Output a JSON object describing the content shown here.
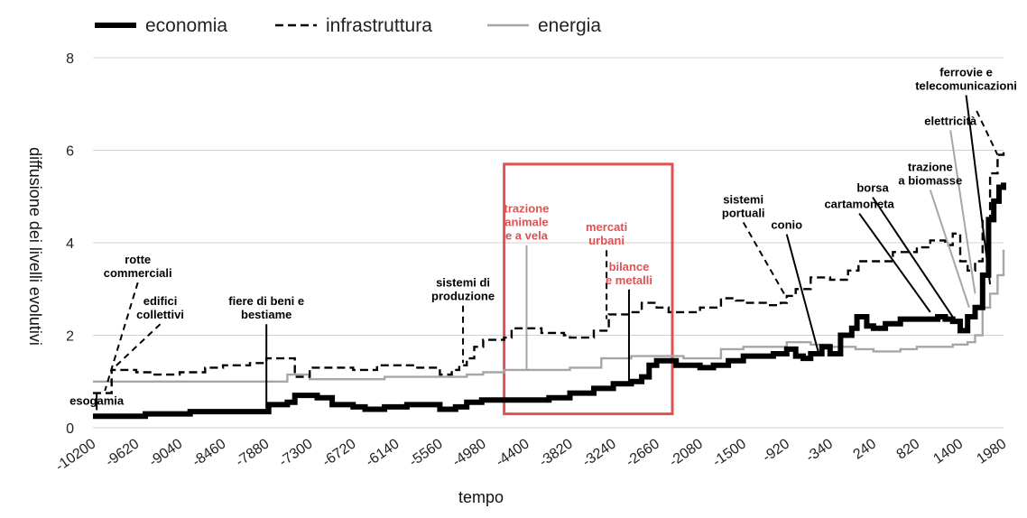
{
  "chart_data": {
    "type": "line",
    "xlabel": "tempo",
    "ylabel": "diffusione dei livelli evolutivi",
    "xlim": [
      -10200,
      1980
    ],
    "ylim": [
      0,
      8
    ],
    "y_ticks": [
      0,
      2,
      4,
      6,
      8
    ],
    "x_ticks": [
      -10200,
      -9620,
      -9040,
      -8460,
      -7880,
      -7300,
      -6720,
      -6140,
      -5560,
      -4980,
      -4400,
      -3820,
      -3240,
      -2660,
      -2080,
      -1500,
      -920,
      -340,
      240,
      820,
      1400,
      1980
    ],
    "grid": "horizontal",
    "legend_position": "top",
    "highlight_box": {
      "x_range": [
        -4700,
        -2450
      ],
      "y_range": [
        0.3,
        5.7
      ],
      "color": "#e05252"
    },
    "series": [
      {
        "name": "economia",
        "style": "solid",
        "color": "#000000",
        "points": [
          [
            -10200,
            0.25
          ],
          [
            -9500,
            0.3
          ],
          [
            -8900,
            0.35
          ],
          [
            -8500,
            0.35
          ],
          [
            -7880,
            0.35
          ],
          [
            -7850,
            0.5
          ],
          [
            -7600,
            0.55
          ],
          [
            -7500,
            0.7
          ],
          [
            -7200,
            0.65
          ],
          [
            -7000,
            0.5
          ],
          [
            -6720,
            0.45
          ],
          [
            -6560,
            0.4
          ],
          [
            -6300,
            0.45
          ],
          [
            -6000,
            0.5
          ],
          [
            -5700,
            0.5
          ],
          [
            -5560,
            0.4
          ],
          [
            -5350,
            0.45
          ],
          [
            -5200,
            0.55
          ],
          [
            -5000,
            0.6
          ],
          [
            -4700,
            0.6
          ],
          [
            -4400,
            0.6
          ],
          [
            -4100,
            0.65
          ],
          [
            -3820,
            0.75
          ],
          [
            -3500,
            0.85
          ],
          [
            -3240,
            0.95
          ],
          [
            -3000,
            1.0
          ],
          [
            -2860,
            1.1
          ],
          [
            -2760,
            1.35
          ],
          [
            -2660,
            1.45
          ],
          [
            -2400,
            1.35
          ],
          [
            -2080,
            1.3
          ],
          [
            -1900,
            1.35
          ],
          [
            -1700,
            1.45
          ],
          [
            -1500,
            1.55
          ],
          [
            -1200,
            1.55
          ],
          [
            -1100,
            1.6
          ],
          [
            -920,
            1.7
          ],
          [
            -800,
            1.55
          ],
          [
            -700,
            1.5
          ],
          [
            -600,
            1.6
          ],
          [
            -450,
            1.75
          ],
          [
            -340,
            1.6
          ],
          [
            -200,
            2.0
          ],
          [
            -50,
            2.15
          ],
          [
            20,
            2.4
          ],
          [
            150,
            2.2
          ],
          [
            240,
            2.15
          ],
          [
            400,
            2.25
          ],
          [
            600,
            2.35
          ],
          [
            820,
            2.35
          ],
          [
            1000,
            2.35
          ],
          [
            1100,
            2.4
          ],
          [
            1200,
            2.35
          ],
          [
            1300,
            2.3
          ],
          [
            1400,
            2.1
          ],
          [
            1500,
            2.4
          ],
          [
            1600,
            2.6
          ],
          [
            1700,
            3.3
          ],
          [
            1780,
            4.5
          ],
          [
            1850,
            4.9
          ],
          [
            1920,
            5.2
          ],
          [
            1980,
            5.3
          ]
        ]
      },
      {
        "name": "infrastruttura",
        "style": "dashed",
        "color": "#000000",
        "points": [
          [
            -10200,
            0.75
          ],
          [
            -10000,
            0.75
          ],
          [
            -9950,
            1.25
          ],
          [
            -9620,
            1.2
          ],
          [
            -9400,
            1.15
          ],
          [
            -9040,
            1.2
          ],
          [
            -8700,
            1.3
          ],
          [
            -8460,
            1.35
          ],
          [
            -8100,
            1.4
          ],
          [
            -7880,
            1.5
          ],
          [
            -7600,
            1.5
          ],
          [
            -7500,
            1.1
          ],
          [
            -7300,
            1.3
          ],
          [
            -7000,
            1.3
          ],
          [
            -6720,
            1.25
          ],
          [
            -6400,
            1.35
          ],
          [
            -6140,
            1.35
          ],
          [
            -5900,
            1.3
          ],
          [
            -5700,
            1.3
          ],
          [
            -5560,
            1.15
          ],
          [
            -5400,
            1.25
          ],
          [
            -5300,
            1.35
          ],
          [
            -5200,
            1.5
          ],
          [
            -5100,
            1.75
          ],
          [
            -4980,
            1.9
          ],
          [
            -4700,
            1.95
          ],
          [
            -4600,
            2.15
          ],
          [
            -4400,
            2.15
          ],
          [
            -4200,
            2.05
          ],
          [
            -3900,
            2.0
          ],
          [
            -3820,
            1.95
          ],
          [
            -3500,
            2.1
          ],
          [
            -3300,
            2.45
          ],
          [
            -3240,
            2.45
          ],
          [
            -3000,
            2.5
          ],
          [
            -2860,
            2.7
          ],
          [
            -2660,
            2.6
          ],
          [
            -2500,
            2.5
          ],
          [
            -2300,
            2.5
          ],
          [
            -2080,
            2.6
          ],
          [
            -1800,
            2.8
          ],
          [
            -1600,
            2.75
          ],
          [
            -1500,
            2.7
          ],
          [
            -1200,
            2.65
          ],
          [
            -1000,
            2.7
          ],
          [
            -920,
            2.85
          ],
          [
            -800,
            3.0
          ],
          [
            -600,
            3.25
          ],
          [
            -340,
            3.2
          ],
          [
            -100,
            3.4
          ],
          [
            40,
            3.6
          ],
          [
            240,
            3.6
          ],
          [
            500,
            3.8
          ],
          [
            820,
            3.9
          ],
          [
            1000,
            4.05
          ],
          [
            1200,
            3.95
          ],
          [
            1300,
            4.2
          ],
          [
            1400,
            3.6
          ],
          [
            1500,
            3.4
          ],
          [
            1600,
            3.6
          ],
          [
            1700,
            4.5
          ],
          [
            1800,
            5.5
          ],
          [
            1900,
            5.9
          ],
          [
            1980,
            6.0
          ]
        ]
      },
      {
        "name": "energia",
        "style": "solid",
        "color": "#a6a6a6",
        "points": [
          [
            -10200,
            1.0
          ],
          [
            -9620,
            1.0
          ],
          [
            -9040,
            1.0
          ],
          [
            -8460,
            1.0
          ],
          [
            -7880,
            1.0
          ],
          [
            -7600,
            1.15
          ],
          [
            -7300,
            1.05
          ],
          [
            -6720,
            1.05
          ],
          [
            -6300,
            1.1
          ],
          [
            -6140,
            1.1
          ],
          [
            -5560,
            1.1
          ],
          [
            -5200,
            1.15
          ],
          [
            -4980,
            1.2
          ],
          [
            -4700,
            1.25
          ],
          [
            -4400,
            1.25
          ],
          [
            -3820,
            1.3
          ],
          [
            -3400,
            1.5
          ],
          [
            -3000,
            1.55
          ],
          [
            -2660,
            1.55
          ],
          [
            -2300,
            1.5
          ],
          [
            -2080,
            1.5
          ],
          [
            -1800,
            1.7
          ],
          [
            -1500,
            1.75
          ],
          [
            -1200,
            1.75
          ],
          [
            -920,
            1.85
          ],
          [
            -600,
            1.8
          ],
          [
            -340,
            1.75
          ],
          [
            0,
            1.7
          ],
          [
            240,
            1.65
          ],
          [
            600,
            1.7
          ],
          [
            820,
            1.75
          ],
          [
            1100,
            1.75
          ],
          [
            1300,
            1.8
          ],
          [
            1500,
            1.85
          ],
          [
            1600,
            2.0
          ],
          [
            1700,
            2.6
          ],
          [
            1800,
            2.9
          ],
          [
            1900,
            3.3
          ],
          [
            1980,
            3.85
          ]
        ]
      }
    ],
    "annotations": [
      {
        "text": [
          "esogamia"
        ],
        "color": "#000000",
        "x": -10150,
        "y": 0.5,
        "anchor_x": -10150,
        "anchor_y": 0.75,
        "line": "solid"
      },
      {
        "text": [
          "rotte",
          "commerciali"
        ],
        "color": "#000000",
        "x": -9600,
        "y": 3.55,
        "anchor_x": -10040,
        "anchor_y": 0.8,
        "line": "dashed"
      },
      {
        "text": [
          "edifici",
          "collettivi"
        ],
        "color": "#000000",
        "x": -9300,
        "y": 2.65,
        "anchor_x": -9950,
        "anchor_y": 1.25,
        "line": "dashed"
      },
      {
        "text": [
          "fiere di beni e",
          "bestiame"
        ],
        "color": "#000000",
        "x": -7880,
        "y": 2.65,
        "anchor_x": -7880,
        "anchor_y": 0.35,
        "line": "solid"
      },
      {
        "text": [
          "sistemi di",
          "produzione"
        ],
        "color": "#000000",
        "x": -5250,
        "y": 3.05,
        "anchor_x": -5250,
        "anchor_y": 1.4,
        "line": "dashed"
      },
      {
        "text": [
          "trazione",
          "animale",
          "e a vela"
        ],
        "color": "#e05252",
        "x": -4400,
        "y": 4.65,
        "anchor_x": -4400,
        "anchor_y": 1.25,
        "line": "solid"
      },
      {
        "text": [
          "mercati",
          "urbani"
        ],
        "color": "#e05252",
        "x": -3330,
        "y": 4.25,
        "anchor_x": -3330,
        "anchor_y": 2.35,
        "line": "dashed"
      },
      {
        "text": [
          "bilance",
          "e metalli"
        ],
        "color": "#e05252",
        "x": -3030,
        "y": 3.4,
        "anchor_x": -3030,
        "anchor_y": 0.98,
        "line": "solid"
      },
      {
        "text": [
          "sistemi",
          "portuali"
        ],
        "color": "#000000",
        "x": -1500,
        "y": 4.85,
        "anchor_x": -920,
        "anchor_y": 2.8,
        "line": "dashed"
      },
      {
        "text": [
          "conio"
        ],
        "color": "#000000",
        "x": -920,
        "y": 4.3,
        "anchor_x": -500,
        "anchor_y": 1.65,
        "line": "solid"
      },
      {
        "text": [
          "cartamoneta"
        ],
        "color": "#000000",
        "x": 50,
        "y": 4.75,
        "anchor_x": 1000,
        "anchor_y": 2.5,
        "line": "solid"
      },
      {
        "text": [
          "borsa"
        ],
        "color": "#000000",
        "x": 230,
        "y": 5.1,
        "anchor_x": 1320,
        "anchor_y": 2.35,
        "line": "solid"
      },
      {
        "text": [
          "trazione",
          "a biomasse"
        ],
        "color": "#000000",
        "x": 1000,
        "y": 5.55,
        "anchor_x": 1520,
        "anchor_y": 2.6,
        "line": "solid"
      },
      {
        "text": [
          "elettricità"
        ],
        "color": "#000000",
        "x": 1270,
        "y": 6.55,
        "anchor_x": 1600,
        "anchor_y": 2.9,
        "line": "solid"
      },
      {
        "text": [
          "ferrovie e",
          "telecomunicazioni"
        ],
        "color": "#000000",
        "x": 1480,
        "y": 7.6,
        "anchor_x": 1800,
        "anchor_y": 3.1,
        "line": "solid"
      },
      {
        "text": [],
        "color": "#000000",
        "x": 1620,
        "y": 6.85,
        "anchor_x": 1900,
        "anchor_y": 5.9,
        "line": "dashed"
      }
    ]
  }
}
